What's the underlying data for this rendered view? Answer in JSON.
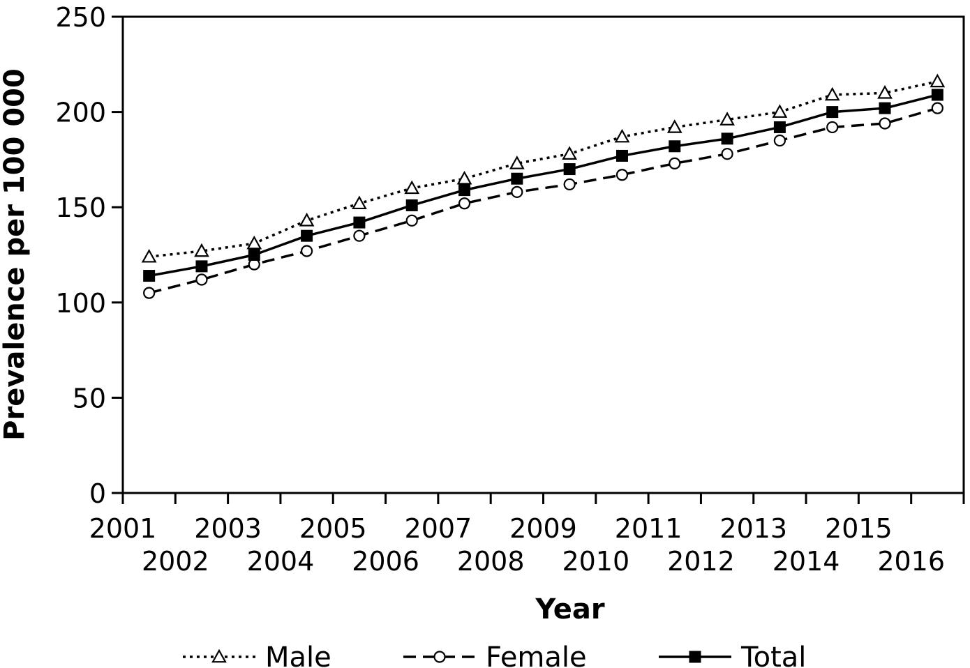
{
  "chart_data": {
    "type": "line",
    "x": [
      "2001",
      "2002",
      "2003",
      "2004",
      "2005",
      "2006",
      "2007",
      "2008",
      "2009",
      "2010",
      "2011",
      "2012",
      "2013",
      "2014",
      "2015",
      "2016"
    ],
    "series": [
      {
        "name": "Male",
        "marker": "triangle-open",
        "line_style": "dotted",
        "values": [
          124,
          127,
          131,
          143,
          152,
          160,
          165,
          173,
          178,
          187,
          192,
          196,
          200,
          209,
          210,
          216
        ]
      },
      {
        "name": "Female",
        "marker": "circle-open",
        "line_style": "dashed",
        "values": [
          105,
          112,
          120,
          127,
          135,
          143,
          152,
          158,
          162,
          167,
          173,
          178,
          185,
          192,
          194,
          202
        ]
      },
      {
        "name": "Total",
        "marker": "square-filled",
        "line_style": "solid",
        "values": [
          114,
          119,
          125,
          135,
          142,
          151,
          159,
          165,
          170,
          177,
          182,
          186,
          192,
          200,
          202,
          209
        ]
      }
    ],
    "xlabel": "Year",
    "ylabel": "Prevalence per 100 000",
    "ylim": [
      0,
      250
    ],
    "yticks": [
      0,
      50,
      100,
      150,
      200,
      250
    ],
    "grid": false,
    "legend": "bottom-center",
    "colors": {
      "line": "#000000",
      "background": "#ffffff"
    }
  }
}
